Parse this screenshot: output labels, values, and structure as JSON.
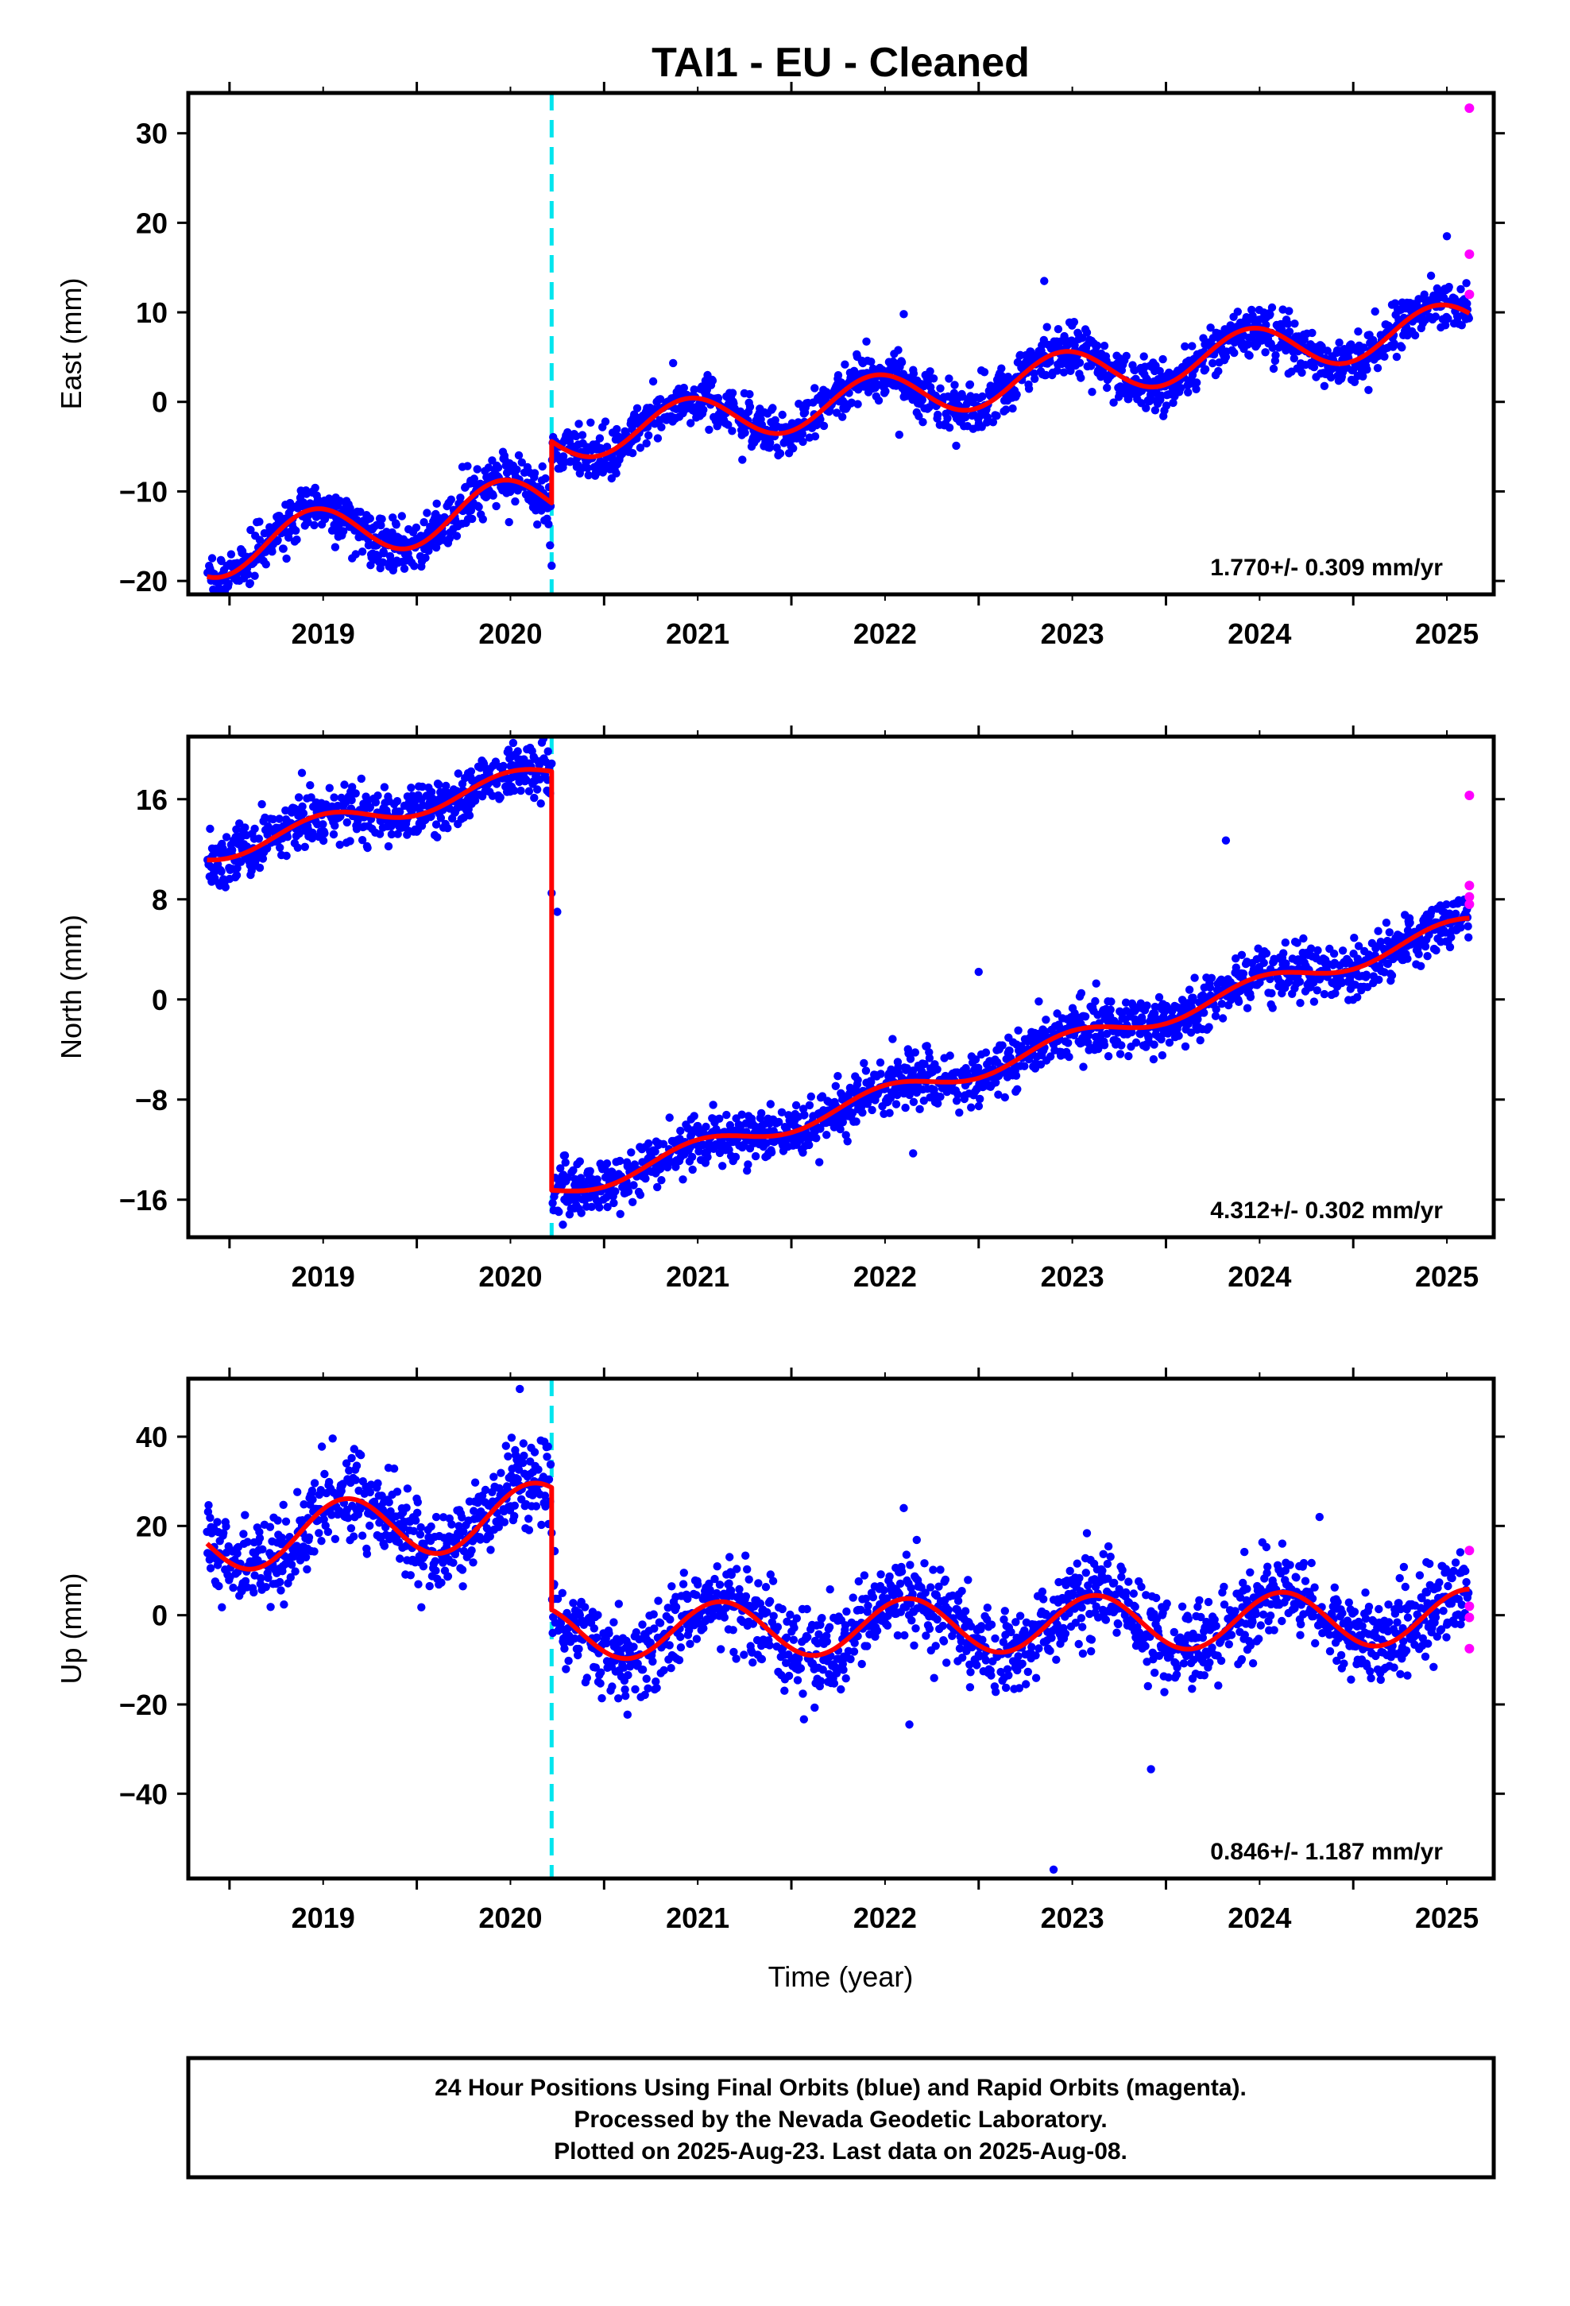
{
  "title": "TAI1  - EU - Cleaned",
  "xlabel": "Time (year)",
  "footer": {
    "line1": "24 Hour Positions Using Final Orbits (blue) and Rapid Orbits (magenta).",
    "line2": "Processed by the Nevada Geodetic Laboratory.",
    "line3": "Plotted on 2025-Aug-23. Last data on 2025-Aug-08."
  },
  "colors": {
    "final_orbits": "#0000ff",
    "rapid_orbits": "#ff00ff",
    "model_fit": "#ff0000",
    "offset_marker": "#00e5ee",
    "frame": "#000000"
  },
  "chart_data": [
    {
      "type": "scatter",
      "component": "east",
      "ylabel": "East (mm)",
      "xlim": [
        2018.78,
        2025.75
      ],
      "ylim": [
        -21.5,
        34.5
      ],
      "x_ticks": [
        "2019",
        "2020",
        "2021",
        "2022",
        "2023",
        "2024",
        "2025"
      ],
      "y_ticks": [
        "−20",
        "−10",
        "0",
        "10",
        "20",
        "30"
      ],
      "y_tick_values": [
        -20,
        -10,
        0,
        10,
        20,
        30
      ],
      "rate": "1.770+/- 0.309 mm/yr",
      "offset_epoch": 2020.72,
      "series": [
        {
          "name": "Final Orbits (blue)",
          "model": {
            "x0": 2018.9,
            "segments": [
              {
                "start": 2018.88,
                "end": 2020.72,
                "y0": -16.8,
                "slope": 3.2,
                "amp": 3.0,
                "phase_peak": 2019.45
              },
              {
                "start": 2020.72,
                "end": 2025.62,
                "y0": -4.1,
                "slope": 2.6,
                "amp": 2.6,
                "phase_peak": 2021.45
              }
            ]
          },
          "noise": 1.4,
          "outliers": [
            [
              2020.72,
              -18.3
            ],
            [
              2025.5,
              18.5
            ],
            [
              2023.35,
              13.5
            ],
            [
              2022.6,
              9.8
            ]
          ]
        },
        {
          "name": "Rapid Orbits (magenta)",
          "points": [
            [
              2025.62,
              32.8
            ],
            [
              2025.62,
              16.5
            ],
            [
              2025.62,
              12.0
            ]
          ]
        },
        {
          "name": "Model fit",
          "line": true,
          "values_from_model": true
        }
      ]
    },
    {
      "type": "scatter",
      "component": "north",
      "ylabel": "North (mm)",
      "xlim": [
        2018.78,
        2025.75
      ],
      "ylim": [
        -19,
        21
      ],
      "x_ticks": [
        "2019",
        "2020",
        "2021",
        "2022",
        "2023",
        "2024",
        "2025"
      ],
      "y_ticks": [
        "−16",
        "−8",
        "0",
        "8",
        "16"
      ],
      "y_tick_values": [
        -16,
        -8,
        0,
        8,
        16
      ],
      "rate": "4.312+/- 0.302 mm/yr",
      "offset_epoch": 2020.72,
      "series": [
        {
          "name": "Final Orbits (blue)",
          "model": {
            "x0": 2018.9,
            "segments": [
              {
                "start": 2018.88,
                "end": 2020.72,
                "y0": 11.8,
                "slope": 3.4,
                "amp": 0.9,
                "phase_peak": 2019.5
              },
              {
                "start": 2020.72,
                "end": 2025.62,
                "y0": -15.4,
                "slope": 4.35,
                "amp": 0.8,
                "phase_peak": 2021.5
              }
            ]
          },
          "noise": 1.1,
          "outliers": [
            [
              2020.72,
              8.5
            ],
            [
              2020.75,
              7.0
            ],
            [
              2020.78,
              -18.0
            ],
            [
              2024.32,
              12.7
            ],
            [
              2025.2,
              1.5
            ],
            [
              2022.65,
              -12.3
            ],
            [
              2023.0,
              2.2
            ]
          ]
        },
        {
          "name": "Rapid Orbits (magenta)",
          "points": [
            [
              2025.62,
              16.3
            ],
            [
              2025.62,
              9.1
            ],
            [
              2025.62,
              8.2
            ],
            [
              2025.62,
              7.6
            ]
          ]
        },
        {
          "name": "Model fit",
          "line": true,
          "values_from_model": true
        }
      ]
    },
    {
      "type": "scatter",
      "component": "up",
      "ylabel": "Up (mm)",
      "xlim": [
        2018.78,
        2025.75
      ],
      "ylim": [
        -59,
        53
      ],
      "x_ticks": [
        "2019",
        "2020",
        "2021",
        "2022",
        "2023",
        "2024",
        "2025"
      ],
      "y_ticks": [
        "−40",
        "−20",
        "0",
        "20",
        "40"
      ],
      "y_tick_values": [
        -40,
        -20,
        0,
        20,
        40
      ],
      "rate": "0.846+/- 1.187 mm/yr",
      "offset_epoch": 2020.72,
      "series": [
        {
          "name": "Final Orbits (blue)",
          "model": {
            "x0": 2018.9,
            "segments": [
              {
                "start": 2018.88,
                "end": 2020.72,
                "y0": 16.5,
                "slope": 3.5,
                "amp": 7.0,
                "phase_peak": 2019.62
              },
              {
                "start": 2020.72,
                "end": 2025.62,
                "y0": -3.8,
                "slope": 0.7,
                "amp": 6.2,
                "phase_peak": 2021.62
              }
            ]
          },
          "noise": 4.8,
          "outliers": [
            [
              2020.55,
              50.7
            ],
            [
              2022.6,
              24.0
            ],
            [
              2022.63,
              -24.5
            ],
            [
              2023.92,
              -34.5
            ],
            [
              2023.4,
              -57.0
            ],
            [
              2024.82,
              22.0
            ]
          ]
        },
        {
          "name": "Rapid Orbits (magenta)",
          "points": [
            [
              2025.62,
              14.5
            ],
            [
              2025.62,
              2.0
            ],
            [
              2025.62,
              -0.5
            ],
            [
              2025.62,
              -7.5
            ]
          ]
        },
        {
          "name": "Model fit",
          "line": true,
          "values_from_model": true
        }
      ]
    }
  ]
}
